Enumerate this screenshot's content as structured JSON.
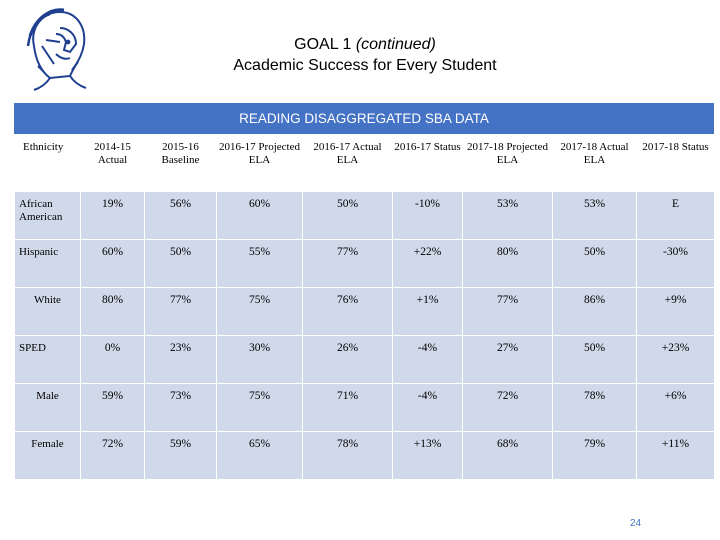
{
  "header": {
    "goal_label": "GOAL 1",
    "goal_suffix": "(continued)",
    "subtitle": "Academic Success for Every Student"
  },
  "logo": {
    "icon": "spartan-helmet-logo"
  },
  "banner": {
    "title": "READING DISAGGREGATED SBA DATA"
  },
  "table": {
    "columns": [
      "Ethnicity",
      "2014-15 Actual",
      "2015-16 Baseline",
      "2016-17 Projected ELA",
      "2016-17 Actual ELA",
      "2016-17 Status",
      "2017-18 Projected ELA",
      "2017-18 Actual ELA",
      "2017-18 Status"
    ],
    "rows": [
      [
        "African American",
        "19%",
        "56%",
        "60%",
        "50%",
        "-10%",
        "53%",
        "53%",
        "E"
      ],
      [
        "Hispanic",
        "60%",
        "50%",
        "55%",
        "77%",
        "+22%",
        "80%",
        "50%",
        "-30%"
      ],
      [
        "White",
        "80%",
        "77%",
        "75%",
        "76%",
        "+1%",
        "77%",
        "86%",
        "+9%"
      ],
      [
        "SPED",
        "0%",
        "23%",
        "30%",
        "26%",
        "-4%",
        "27%",
        "50%",
        "+23%"
      ],
      [
        "Male",
        "59%",
        "73%",
        "75%",
        "71%",
        "-4%",
        "72%",
        "78%",
        "+6%"
      ],
      [
        "Female",
        "72%",
        "59%",
        "65%",
        "78%",
        "+13%",
        "68%",
        "79%",
        "+11%"
      ]
    ]
  },
  "footer": {
    "page_number": "24"
  },
  "colors": {
    "banner": "#4472c4",
    "cell": "#d0d9ea",
    "page_number": "#4472c4"
  }
}
